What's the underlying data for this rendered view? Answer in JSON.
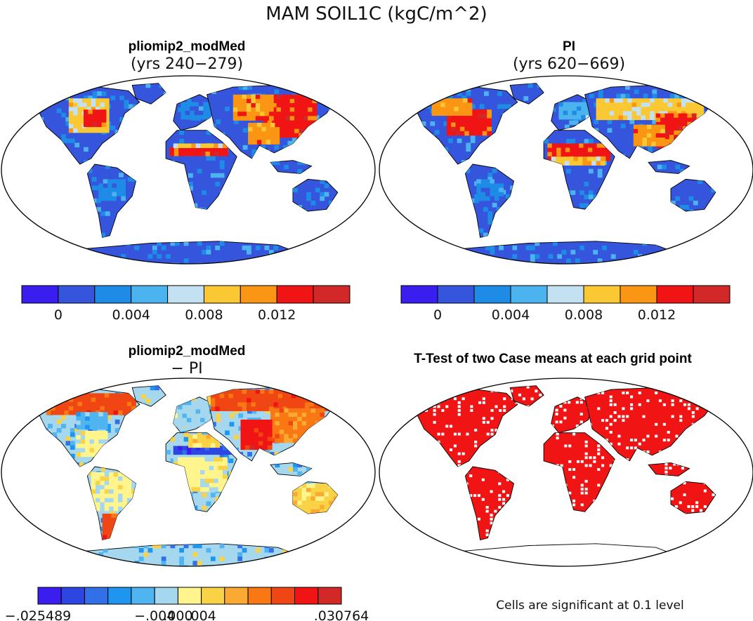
{
  "title": "MAM SOIL1C (kgC/m^2)",
  "panels": [
    {
      "title": "pliomip2_modMed",
      "subtitle": "(yrs 240−279)"
    },
    {
      "title": "PI",
      "subtitle": "(yrs 620−669)"
    },
    {
      "title": "pliomip2_modMed",
      "subtitle": "− PI"
    },
    {
      "title": "T-Test of two Case means at each grid point",
      "subtitle": ""
    }
  ],
  "colorbars": {
    "absolute": {
      "colors": [
        "#3a1ef0",
        "#3556dc",
        "#1e8ce6",
        "#4bb4ee",
        "#c3e1f0",
        "#fac832",
        "#fa9614",
        "#f01414",
        "#d22828"
      ],
      "tick_labels": [
        "0",
        "0.004",
        "0.008",
        "0.012"
      ]
    },
    "difference": {
      "colors": [
        "#3a1ef0",
        "#2d46e1",
        "#3270e8",
        "#1e96f0",
        "#50b4f0",
        "#a5d7ee",
        "#fff58c",
        "#fad246",
        "#faaa32",
        "#fa7814",
        "#f04614",
        "#f01414",
        "#d22828"
      ],
      "tick_labels": [
        "−.025489",
        "−.004",
        ".000",
        ".004",
        ".030764"
      ]
    }
  },
  "significance_note": "Cells are significant at 0.1 level",
  "map_colors": {
    "ocean": "#ffffff",
    "land_base": "#3556dc",
    "antarctica_diff": "#a5d7ee",
    "significant": "#f01414"
  }
}
